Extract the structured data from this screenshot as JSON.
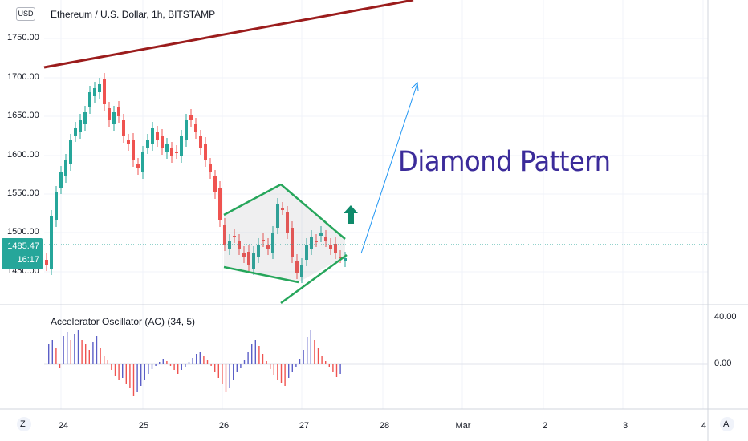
{
  "header": {
    "currency": "USD",
    "symbol_title": "Ethereum / U.S. Dollar, 1h, BITSTAMP"
  },
  "price_axis": {
    "labels": [
      "1750.00",
      "1700.00",
      "1650.00",
      "1600.00",
      "1550.00",
      "1500.00",
      "1450.00"
    ]
  },
  "last_price": {
    "value": "1485.47",
    "countdown": "16:17",
    "color": "#26a69a"
  },
  "oscillator": {
    "title": "Accelerator Oscillator (AC) (34, 5)",
    "axis_labels": [
      "40.00",
      "0.00"
    ],
    "up_color": "#5b5fc7",
    "down_color": "#ef5350"
  },
  "time_axis": {
    "labels": [
      "24",
      "25",
      "26",
      "27",
      "28",
      "Mar",
      "2",
      "3",
      "4"
    ]
  },
  "toolbar": {
    "zoom_label": "Z",
    "auto_label": "A"
  },
  "annotation": {
    "text": "Diamond Pattern",
    "color": "#3b2b9a"
  },
  "colors": {
    "up": "#26a69a",
    "down": "#ef5350",
    "trendline": "#9b1c1c",
    "diamond": "#26a65b",
    "arrow": "#2196f3",
    "signal_arrow": "#0e8a6a"
  }
}
